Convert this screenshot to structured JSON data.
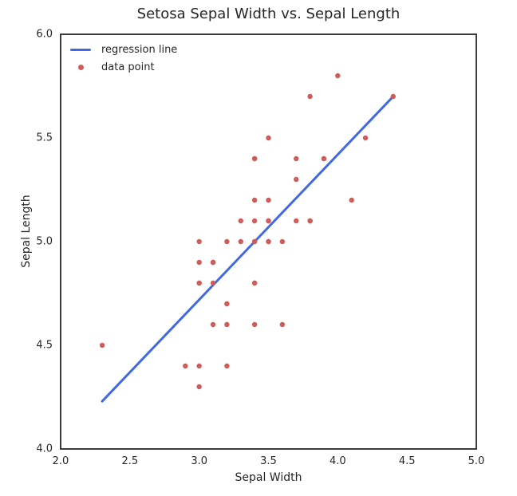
{
  "chart_data": {
    "type": "scatter",
    "title": "Setosa Sepal Width vs. Sepal Length",
    "xlabel": "Sepal Width",
    "ylabel": "Sepal Length",
    "xlim": [
      2.0,
      5.0
    ],
    "ylim": [
      4.0,
      6.0
    ],
    "xticks": [
      2.0,
      2.5,
      3.0,
      3.5,
      4.0,
      4.5,
      5.0
    ],
    "xtick_labels": [
      "2.0",
      "2.5",
      "3.0",
      "3.5",
      "4.0",
      "4.5",
      "5.0"
    ],
    "yticks": [
      4.0,
      4.5,
      5.0,
      5.5,
      6.0
    ],
    "ytick_labels": [
      "4.0",
      "4.5",
      "5.0",
      "5.5",
      "6.0"
    ],
    "grid": false,
    "frame_color": "#262626",
    "legend": {
      "position": "upper left",
      "frame": false,
      "entries": [
        {
          "label": "regression line",
          "marker": "line",
          "color": "#4169e1"
        },
        {
          "label": "data point",
          "marker": "dot",
          "color": "#cd5c5c"
        }
      ]
    },
    "series": [
      {
        "name": "regression line",
        "type": "line",
        "color": "#4169e1",
        "x": [
          2.3,
          4.4
        ],
        "y": [
          4.23,
          5.7
        ]
      },
      {
        "name": "data point",
        "type": "scatter",
        "color": "#cd5c5c",
        "points": [
          [
            3.5,
            5.1
          ],
          [
            3.0,
            4.9
          ],
          [
            3.2,
            4.7
          ],
          [
            3.1,
            4.6
          ],
          [
            3.6,
            5.0
          ],
          [
            3.9,
            5.4
          ],
          [
            3.4,
            4.6
          ],
          [
            3.4,
            5.0
          ],
          [
            2.9,
            4.4
          ],
          [
            3.1,
            4.9
          ],
          [
            3.7,
            5.4
          ],
          [
            3.4,
            4.8
          ],
          [
            3.0,
            4.8
          ],
          [
            3.0,
            4.3
          ],
          [
            4.0,
            5.8
          ],
          [
            4.4,
            5.7
          ],
          [
            3.9,
            5.4
          ],
          [
            3.5,
            5.1
          ],
          [
            3.8,
            5.7
          ],
          [
            3.8,
            5.1
          ],
          [
            3.4,
            5.4
          ],
          [
            3.7,
            5.1
          ],
          [
            3.6,
            4.6
          ],
          [
            3.3,
            5.1
          ],
          [
            3.4,
            4.8
          ],
          [
            3.0,
            5.0
          ],
          [
            3.4,
            5.0
          ],
          [
            3.5,
            5.2
          ],
          [
            3.4,
            5.2
          ],
          [
            3.2,
            4.7
          ],
          [
            3.1,
            4.8
          ],
          [
            3.4,
            5.4
          ],
          [
            4.1,
            5.2
          ],
          [
            4.2,
            5.5
          ],
          [
            3.1,
            4.9
          ],
          [
            3.2,
            5.0
          ],
          [
            3.5,
            5.5
          ],
          [
            3.1,
            4.9
          ],
          [
            3.0,
            4.4
          ],
          [
            3.4,
            5.1
          ],
          [
            3.5,
            5.0
          ],
          [
            2.3,
            4.5
          ],
          [
            3.2,
            4.4
          ],
          [
            3.5,
            5.0
          ],
          [
            3.8,
            5.1
          ],
          [
            3.0,
            4.8
          ],
          [
            3.8,
            5.1
          ],
          [
            3.2,
            4.6
          ],
          [
            3.7,
            5.3
          ],
          [
            3.3,
            5.0
          ]
        ]
      }
    ]
  }
}
